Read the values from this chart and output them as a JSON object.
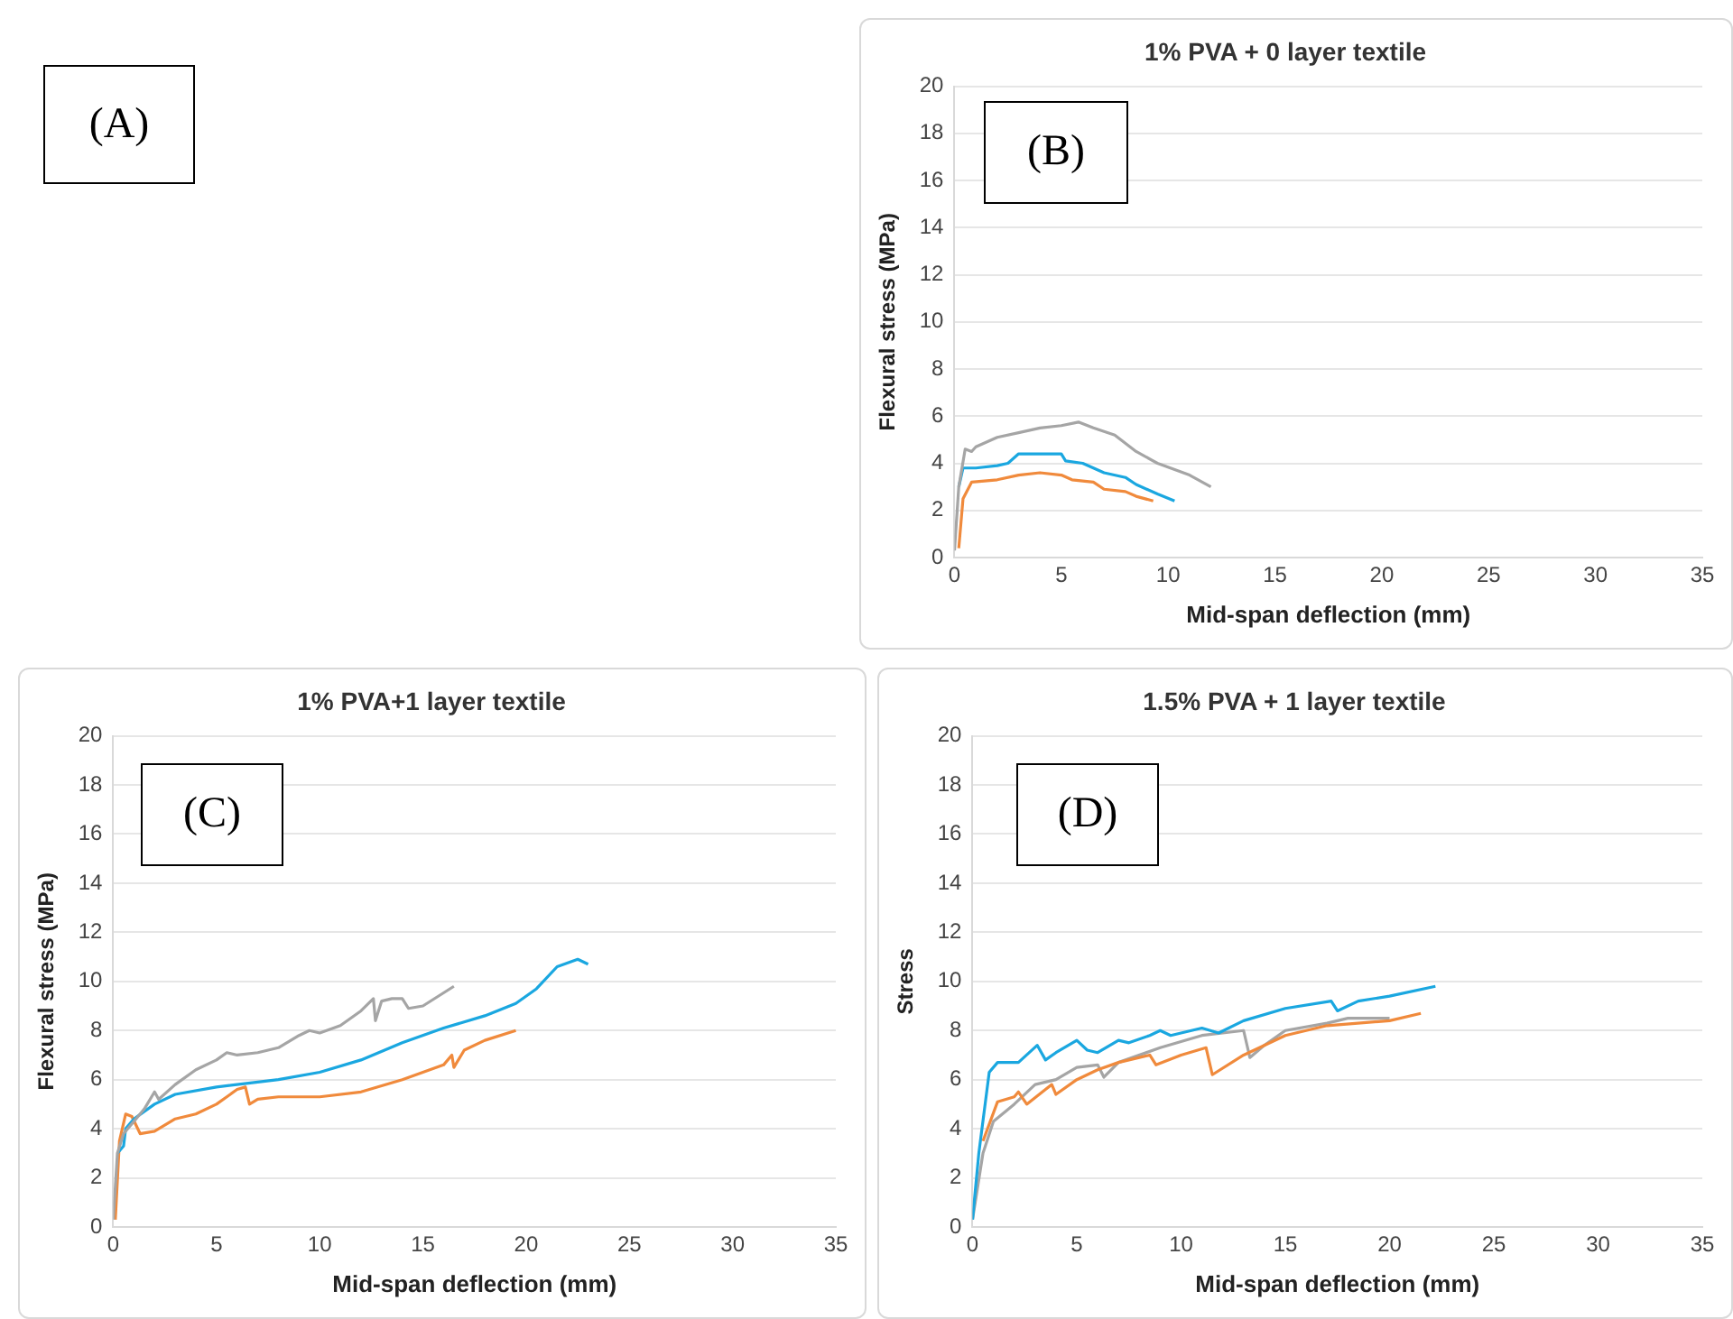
{
  "chart_data": [
    {
      "type": "other",
      "annotations": [
        "(A)"
      ]
    },
    {
      "type": "line",
      "title": "1% PVA + 0 layer textile",
      "xlabel": "Mid-span deflection (mm)",
      "ylabel": "Flexural stress (MPa)",
      "xlim": [
        0,
        35
      ],
      "xticks": [
        0,
        5,
        10,
        15,
        20,
        25,
        30,
        35
      ],
      "ylim": [
        0,
        20
      ],
      "yticks": [
        0,
        2,
        4,
        6,
        8,
        10,
        12,
        14,
        16,
        18,
        20
      ],
      "grid": "y",
      "legend": false,
      "marker": "none",
      "line_style": "solid",
      "annotations": [
        "(B)"
      ],
      "series": [
        {
          "color": "#a5a5a5",
          "x": [
            0,
            0.2,
            0.5,
            0.8,
            1,
            2,
            3,
            4,
            5,
            5.8,
            6.5,
            7.5,
            8.5,
            9.5,
            11,
            12
          ],
          "values": [
            0.3,
            3,
            4.6,
            4.5,
            4.7,
            5.1,
            5.3,
            5.5,
            5.6,
            5.75,
            5.5,
            5.2,
            4.5,
            4,
            3.5,
            3
          ]
        },
        {
          "color": "#1aa7e0",
          "x": [
            0.2,
            0.4,
            1,
            2,
            2.5,
            3,
            4,
            5,
            5.2,
            6,
            7,
            8,
            8.5,
            9.5,
            10.3
          ],
          "values": [
            3,
            3.8,
            3.8,
            3.9,
            4,
            4.4,
            4.4,
            4.4,
            4.1,
            4,
            3.6,
            3.4,
            3.1,
            2.7,
            2.4
          ]
        },
        {
          "color": "#f08a3c",
          "x": [
            0.2,
            0.4,
            0.8,
            2,
            3,
            4,
            5,
            5.5,
            6.5,
            7,
            8,
            8.5,
            9.3
          ],
          "values": [
            0.4,
            2.5,
            3.2,
            3.3,
            3.5,
            3.6,
            3.5,
            3.3,
            3.2,
            2.9,
            2.8,
            2.6,
            2.4
          ]
        }
      ]
    },
    {
      "type": "line",
      "title": "1% PVA+1 layer textile",
      "xlabel": "Mid-span deflection (mm)",
      "ylabel": "Flexural stress (MPa)",
      "xlim": [
        0,
        35
      ],
      "xticks": [
        0,
        5,
        10,
        15,
        20,
        25,
        30,
        35
      ],
      "ylim": [
        0,
        20
      ],
      "yticks": [
        0,
        2,
        4,
        6,
        8,
        10,
        12,
        14,
        16,
        18,
        20
      ],
      "grid": "y",
      "legend": false,
      "marker": "none",
      "line_style": "solid",
      "annotations": [
        "(C)"
      ],
      "series": [
        {
          "color": "#a5a5a5",
          "x": [
            0,
            0.2,
            0.5,
            1,
            1.5,
            2,
            2.2,
            3,
            4,
            5,
            5.5,
            6,
            7,
            8,
            9,
            9.5,
            10,
            11,
            12,
            12.6,
            12.7,
            13,
            13.5,
            14,
            14.3,
            15,
            16.5
          ],
          "values": [
            0.3,
            3,
            3.8,
            4.3,
            4.8,
            5.5,
            5.2,
            5.8,
            6.4,
            6.8,
            7.1,
            7,
            7.1,
            7.3,
            7.8,
            8,
            7.9,
            8.2,
            8.8,
            9.3,
            8.4,
            9.2,
            9.3,
            9.3,
            8.9,
            9,
            9.8
          ]
        },
        {
          "color": "#1aa7e0",
          "x": [
            0.2,
            0.5,
            0.6,
            1,
            2,
            3,
            5,
            7,
            8,
            10,
            12,
            14,
            16,
            18,
            19.5,
            20.5,
            21.5,
            22.5,
            23
          ],
          "values": [
            3,
            3.3,
            4,
            4.4,
            5,
            5.4,
            5.7,
            5.9,
            6,
            6.3,
            6.8,
            7.5,
            8.1,
            8.6,
            9.1,
            9.7,
            10.6,
            10.9,
            10.7
          ]
        },
        {
          "color": "#f08a3c",
          "x": [
            0.1,
            0.3,
            0.6,
            0.9,
            1.3,
            2,
            3,
            4,
            5,
            5.5,
            6,
            6.4,
            6.6,
            7,
            8,
            10,
            12,
            14,
            16,
            16.4,
            16.5,
            17,
            18,
            19.5
          ],
          "values": [
            0.3,
            3.5,
            4.6,
            4.5,
            3.8,
            3.9,
            4.4,
            4.6,
            5,
            5.3,
            5.6,
            5.7,
            5,
            5.2,
            5.3,
            5.3,
            5.5,
            6,
            6.6,
            7,
            6.5,
            7.2,
            7.6,
            8
          ]
        }
      ]
    },
    {
      "type": "line",
      "title": "1.5% PVA + 1 layer textile",
      "xlabel": "Mid-span deflection (mm)",
      "ylabel": "Stress",
      "xlim": [
        0,
        35
      ],
      "xticks": [
        0,
        5,
        10,
        15,
        20,
        25,
        30,
        35
      ],
      "ylim": [
        0,
        20
      ],
      "yticks": [
        0,
        2,
        4,
        6,
        8,
        10,
        12,
        14,
        16,
        18,
        20
      ],
      "grid": "y",
      "legend": false,
      "marker": "none",
      "line_style": "solid",
      "annotations": [
        "(D)"
      ],
      "series": [
        {
          "color": "#1aa7e0",
          "x": [
            0,
            0.3,
            0.8,
            1.2,
            1.8,
            2.2,
            3.1,
            3.5,
            4,
            5,
            5.5,
            6,
            7,
            7.5,
            8.5,
            9,
            9.5,
            10,
            11,
            11.8,
            13,
            15,
            17.2,
            17.5,
            18.5,
            20,
            22.2
          ],
          "values": [
            0.3,
            3,
            6.3,
            6.7,
            6.7,
            6.7,
            7.4,
            6.8,
            7.1,
            7.6,
            7.2,
            7.1,
            7.6,
            7.5,
            7.8,
            8,
            7.8,
            7.9,
            8.1,
            7.9,
            8.4,
            8.9,
            9.2,
            8.8,
            9.2,
            9.4,
            9.8
          ]
        },
        {
          "color": "#f08a3c",
          "x": [
            0.5,
            1.2,
            2,
            2.2,
            2.6,
            3.5,
            3.8,
            4,
            5,
            6,
            7,
            8,
            8.5,
            8.8,
            10,
            11.2,
            11.5,
            13,
            15,
            17,
            20,
            21.5
          ],
          "values": [
            3.5,
            5.1,
            5.3,
            5.5,
            5,
            5.6,
            5.8,
            5.4,
            6,
            6.4,
            6.7,
            6.9,
            7,
            6.6,
            7,
            7.3,
            6.2,
            7,
            7.8,
            8.2,
            8.4,
            8.7
          ]
        },
        {
          "color": "#a5a5a5",
          "x": [
            0,
            0.5,
            1,
            2,
            3,
            4,
            5,
            6,
            6.3,
            7,
            9,
            11,
            13,
            13.3,
            14,
            15,
            17,
            18,
            20
          ],
          "values": [
            0.3,
            3,
            4.3,
            5,
            5.8,
            6,
            6.5,
            6.6,
            6.1,
            6.7,
            7.3,
            7.8,
            8,
            6.9,
            7.4,
            8,
            8.3,
            8.5,
            8.5
          ]
        }
      ]
    }
  ]
}
